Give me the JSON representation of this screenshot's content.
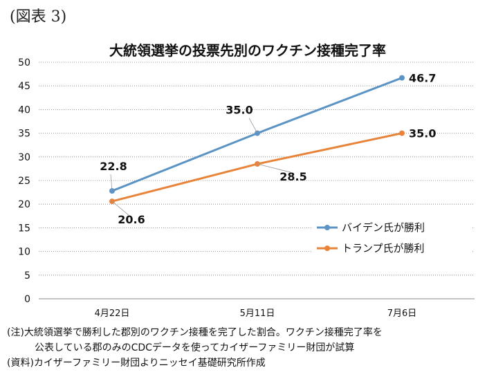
{
  "figure_label": "(図表 3)",
  "chart_data": {
    "type": "line",
    "title": "大統領選挙の投票先別のワクチン接種完了率",
    "xlabel": "",
    "ylabel": "",
    "categories": [
      "4月22日",
      "5月11日",
      "7月6日"
    ],
    "ylim": [
      0,
      50
    ],
    "yticks": [
      "0",
      "5",
      "10",
      "15",
      "20",
      "25",
      "30",
      "35",
      "40",
      "45",
      "50"
    ],
    "grid": true,
    "legend_position": "right",
    "series": [
      {
        "name": "バイデン氏が勝利",
        "values": [
          22.8,
          35.0,
          46.7
        ],
        "labels": [
          "22.8",
          "35.0",
          "46.7"
        ],
        "color": "#5b93c5"
      },
      {
        "name": "トランプ氏が勝利",
        "values": [
          20.6,
          28.5,
          35.0
        ],
        "labels": [
          "20.6",
          "28.5",
          "35.0"
        ],
        "color": "#e8843a"
      }
    ]
  },
  "notes": {
    "note_line1": "(注)大統領選挙で勝利した郡別のワクチン接種を完了した割合。ワクチン接種完了率を",
    "note_line2": "公表している郡のみのCDCデータを使ってカイザーファミリー財団が試算",
    "source": "(資料)カイザーファミリー財団よりニッセイ基礎研究所作成"
  }
}
